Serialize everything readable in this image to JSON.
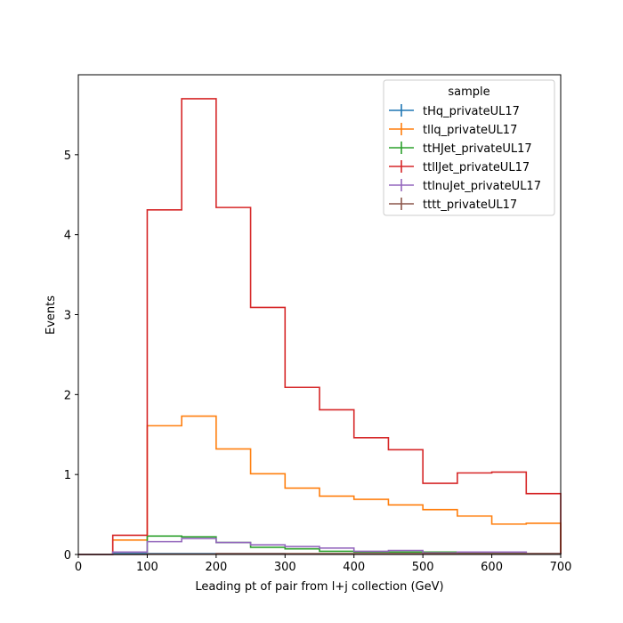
{
  "chart_data": {
    "type": "line",
    "style": "step-histogram",
    "xlabel": "Leading pt of pair from l+j collection (GeV)",
    "ylabel": "Events",
    "xlim": [
      0,
      700
    ],
    "ylim": [
      0,
      6.0
    ],
    "x_ticks": [
      "0",
      "100",
      "200",
      "300",
      "400",
      "500",
      "600",
      "700"
    ],
    "y_ticks": [
      "0",
      "1",
      "2",
      "3",
      "4",
      "5"
    ],
    "grid": false,
    "legend_position": "top-right",
    "legend_title": "sample",
    "bin_edges": [
      0,
      50,
      100,
      150,
      200,
      250,
      300,
      350,
      400,
      450,
      500,
      550,
      600,
      650,
      700
    ],
    "series": [
      {
        "name": "tHq_privateUL17",
        "color": "#1f77b4",
        "values": [
          0,
          0.01,
          0.01,
          0.01,
          0.01,
          0.01,
          0.005,
          0.005,
          0.005,
          0.005,
          0.005,
          0.005,
          0.005,
          0.005
        ]
      },
      {
        "name": "tllq_privateUL17",
        "color": "#ff7f0e",
        "values": [
          0,
          0.18,
          1.61,
          1.73,
          1.32,
          1.01,
          0.83,
          0.73,
          0.69,
          0.62,
          0.56,
          0.48,
          0.38,
          0.39
        ]
      },
      {
        "name": "ttHJet_privateUL17",
        "color": "#2ca02c",
        "values": [
          0,
          0.03,
          0.23,
          0.22,
          0.15,
          0.09,
          0.07,
          0.04,
          0.03,
          0.03,
          0.03,
          0.02,
          0.02,
          0.01
        ]
      },
      {
        "name": "ttllJet_privateUL17",
        "color": "#d62728",
        "values": [
          0,
          0.24,
          4.31,
          5.7,
          4.34,
          3.09,
          2.09,
          1.81,
          1.46,
          1.31,
          0.89,
          1.02,
          1.03,
          0.76
        ]
      },
      {
        "name": "ttlnuJet_privateUL17",
        "color": "#9467bd",
        "values": [
          0,
          0.03,
          0.16,
          0.2,
          0.15,
          0.12,
          0.1,
          0.08,
          0.04,
          0.05,
          0.02,
          0.03,
          0.03,
          0.01
        ]
      },
      {
        "name": "tttt_privateUL17",
        "color": "#8c564b",
        "values": [
          0,
          0.0,
          0.005,
          0.005,
          0.01,
          0.01,
          0.01,
          0.01,
          0.01,
          0.01,
          0.01,
          0.01,
          0.01,
          0.01
        ]
      }
    ]
  }
}
